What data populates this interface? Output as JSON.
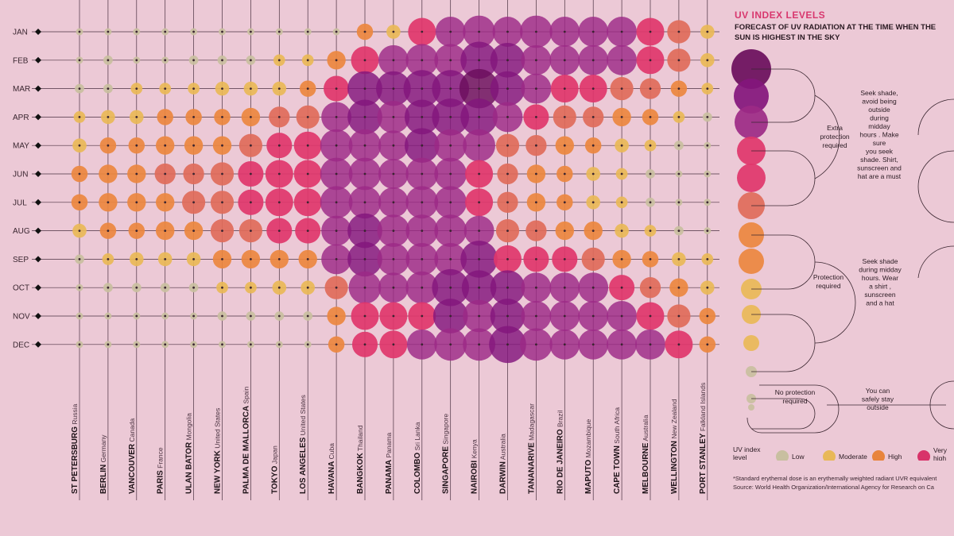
{
  "legend": {
    "title": "UV INDEX LEVELS",
    "subtitle": "FORECAST OF UV RADIATION AT THE TIME WHEN THE SUN IS HIGHEST IN THE SKY",
    "groups": [
      {
        "label": [
          "Extra",
          "protection",
          "required"
        ],
        "advice": [
          "Seek shade,",
          "avoid being",
          "outside",
          "during",
          "midday",
          "hours . Make",
          "sure",
          "you seek",
          "shade. Shirt,",
          "sunscreen and",
          "hat are a must"
        ]
      },
      {
        "label": [
          "Protection",
          "required"
        ],
        "advice": [
          "Seek shade",
          "during midday",
          "hours. Wear",
          "a shirt ,",
          "sunscreen",
          "and a hat"
        ]
      },
      {
        "label": [
          "No protection",
          "required"
        ],
        "advice": [
          "You can",
          "safely stay",
          "outside"
        ]
      }
    ],
    "key_label": [
      "UV index",
      "level"
    ],
    "key": [
      {
        "label": [
          "Low"
        ],
        "color": "#c8bfa0"
      },
      {
        "label": [
          "Moderate"
        ],
        "color": "#e8b858"
      },
      {
        "label": [
          "High"
        ],
        "color": "#e8843c"
      },
      {
        "label": [
          "Very",
          "high"
        ],
        "color": "#d8336a"
      }
    ],
    "footnote_1": "*Standard erythemal dose is an erythemally weighted radiant UVR equivalent",
    "footnote_2": "Source: World Health Organization/International Agency for Research on Ca"
  },
  "chart_data": {
    "type": "bubble-matrix",
    "value_scale": "UV index (1-15)",
    "months": [
      "JAN",
      "FEB",
      "MAR",
      "APR",
      "MAY",
      "JUN",
      "JUL",
      "AUG",
      "SEP",
      "OCT",
      "NOV",
      "DEC"
    ],
    "cities": [
      {
        "name": "ST PETERSBURG",
        "country": "Russia"
      },
      {
        "name": "BERLIN",
        "country": "Germany"
      },
      {
        "name": "VANCOUVER",
        "country": "Canada"
      },
      {
        "name": "PARIS",
        "country": "France"
      },
      {
        "name": "ULAN BATOR",
        "country": "Mongolia"
      },
      {
        "name": "NEW YORK",
        "country": "United States"
      },
      {
        "name": "PALMA DE MALLORCA",
        "country": "Spain"
      },
      {
        "name": "TOKYO",
        "country": "Japan"
      },
      {
        "name": "LOS ANGELES",
        "country": "United States"
      },
      {
        "name": "HAVANA",
        "country": "Cuba"
      },
      {
        "name": "BANGKOK",
        "country": "Thailand"
      },
      {
        "name": "PANAMA",
        "country": "Panama"
      },
      {
        "name": "COLOMBO",
        "country": "Sri Lanka"
      },
      {
        "name": "SINGAPORE",
        "country": "Singapore"
      },
      {
        "name": "NAIROBI",
        "country": "Kenya"
      },
      {
        "name": "DARWIN",
        "country": "Australia"
      },
      {
        "name": "TANANARIVE",
        "country": "Madagascar"
      },
      {
        "name": "RIO DE JANEIRO",
        "country": "Brazil"
      },
      {
        "name": "MAPUTO",
        "country": "Mozambique"
      },
      {
        "name": "CAPE TOWN",
        "country": "South Africa"
      },
      {
        "name": "MELBOURNE",
        "country": "Australia"
      },
      {
        "name": "WELLINGTON",
        "country": "New Zealand"
      },
      {
        "name": "PORT STANLEY",
        "country": "Falkland Islands"
      }
    ],
    "values": [
      [
        1,
        1,
        1,
        1,
        1,
        1,
        1,
        1,
        1,
        1,
        5,
        4,
        10,
        11,
        12,
        11,
        12,
        11,
        11,
        11,
        10,
        8,
        4
      ],
      [
        1,
        2,
        1,
        1,
        2,
        2,
        2,
        3,
        3,
        6,
        10,
        11,
        12,
        12,
        14,
        13,
        11,
        11,
        11,
        11,
        10,
        8,
        4
      ],
      [
        2,
        2,
        3,
        3,
        3,
        4,
        4,
        4,
        5,
        9,
        13,
        13,
        14,
        14,
        15,
        13,
        11,
        10,
        10,
        8,
        7,
        5,
        3
      ],
      [
        3,
        4,
        4,
        5,
        5,
        5,
        6,
        7,
        8,
        11,
        13,
        12,
        13,
        14,
        14,
        11,
        9,
        8,
        7,
        6,
        5,
        3,
        2
      ],
      [
        4,
        5,
        5,
        6,
        6,
        6,
        8,
        9,
        10,
        12,
        12,
        11,
        13,
        12,
        12,
        8,
        7,
        6,
        5,
        4,
        3,
        2,
        1
      ],
      [
        5,
        6,
        6,
        7,
        7,
        8,
        9,
        10,
        10,
        12,
        12,
        11,
        12,
        12,
        10,
        7,
        6,
        5,
        4,
        3,
        2,
        1,
        1
      ],
      [
        5,
        6,
        6,
        6,
        8,
        8,
        9,
        10,
        10,
        12,
        12,
        11,
        12,
        12,
        10,
        7,
        6,
        5,
        4,
        3,
        2,
        1,
        1
      ],
      [
        4,
        5,
        5,
        6,
        6,
        8,
        8,
        9,
        9,
        11,
        13,
        12,
        12,
        12,
        11,
        8,
        7,
        6,
        6,
        4,
        3,
        2,
        1
      ],
      [
        2,
        3,
        4,
        4,
        4,
        6,
        6,
        6,
        6,
        11,
        13,
        12,
        12,
        12,
        14,
        10,
        9,
        9,
        8,
        6,
        5,
        4,
        3
      ],
      [
        1,
        2,
        2,
        2,
        2,
        3,
        3,
        4,
        4,
        8,
        12,
        11,
        12,
        14,
        13,
        13,
        11,
        11,
        11,
        9,
        7,
        6,
        4
      ],
      [
        1,
        1,
        1,
        1,
        1,
        2,
        2,
        2,
        2,
        6,
        10,
        10,
        10,
        13,
        12,
        13,
        11,
        11,
        11,
        11,
        10,
        8,
        5
      ],
      [
        1,
        1,
        1,
        1,
        1,
        1,
        1,
        1,
        1,
        5,
        9,
        10,
        11,
        12,
        12,
        14,
        12,
        11,
        11,
        11,
        11,
        10,
        5
      ]
    ]
  }
}
